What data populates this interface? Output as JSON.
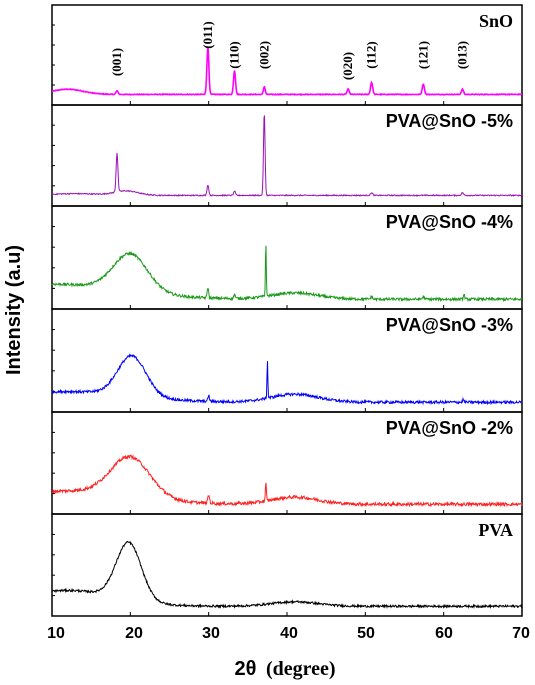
{
  "chart_data": {
    "type": "line",
    "xlabel_main": "2θ",
    "xlabel_unit": "(degree)",
    "ylabel": "Intensity (a.u)",
    "xlim": [
      10,
      70
    ],
    "xticks": [
      10,
      20,
      30,
      40,
      50,
      60,
      70
    ],
    "series": [
      {
        "name": "SnO",
        "color": "#ff00ff",
        "label_font": "serif",
        "peaks": [
          {
            "x": 18.3,
            "h": 0.04,
            "w": 0.3
          },
          {
            "x": 29.9,
            "h": 0.55,
            "w": 0.28
          },
          {
            "x": 33.3,
            "h": 0.28,
            "w": 0.28
          },
          {
            "x": 37.1,
            "h": 0.09,
            "w": 0.25
          },
          {
            "x": 47.8,
            "h": 0.06,
            "w": 0.3
          },
          {
            "x": 50.8,
            "h": 0.14,
            "w": 0.3
          },
          {
            "x": 57.4,
            "h": 0.12,
            "w": 0.3
          },
          {
            "x": 62.4,
            "h": 0.06,
            "w": 0.3
          }
        ],
        "humps": [
          {
            "x": 12.0,
            "h": 0.06,
            "w": 2.0
          }
        ],
        "baseline": 0.03,
        "noise": 0.004,
        "peak_labels": [
          {
            "x": 18.3,
            "text": "(001)"
          },
          {
            "x": 29.9,
            "text": "(011)"
          },
          {
            "x": 33.3,
            "text": "(110)"
          },
          {
            "x": 37.1,
            "text": "(002)"
          },
          {
            "x": 47.8,
            "text": "(020)"
          },
          {
            "x": 50.8,
            "text": "(112)"
          },
          {
            "x": 57.4,
            "text": "(121)"
          },
          {
            "x": 62.4,
            "text": "(013)"
          }
        ]
      },
      {
        "name": "PVA@SnO -5%",
        "color": "#9b10b8",
        "label_font": "sans",
        "peaks": [
          {
            "x": 18.3,
            "h": 0.45,
            "w": 0.25
          },
          {
            "x": 29.9,
            "h": 0.12,
            "w": 0.25
          },
          {
            "x": 33.3,
            "h": 0.05,
            "w": 0.25
          },
          {
            "x": 37.1,
            "h": 0.95,
            "w": 0.22
          },
          {
            "x": 50.8,
            "h": 0.03,
            "w": 0.3
          },
          {
            "x": 62.4,
            "h": 0.03,
            "w": 0.3
          }
        ],
        "humps": [
          {
            "x": 19.5,
            "h": 0.05,
            "w": 1.5
          },
          {
            "x": 13.0,
            "h": 0.02,
            "w": 3.0
          }
        ],
        "baseline": 0.03,
        "noise": 0.006
      },
      {
        "name": "PVA@SnO -4%",
        "color": "#1a9a1a",
        "label_font": "sans",
        "peaks": [
          {
            "x": 29.9,
            "h": 0.12,
            "w": 0.2
          },
          {
            "x": 33.3,
            "h": 0.05,
            "w": 0.2
          },
          {
            "x": 37.3,
            "h": 0.6,
            "w": 0.12
          },
          {
            "x": 50.8,
            "h": 0.03,
            "w": 0.25
          },
          {
            "x": 57.4,
            "h": 0.03,
            "w": 0.25
          },
          {
            "x": 62.6,
            "h": 0.05,
            "w": 0.2
          }
        ],
        "humps": [
          {
            "x": 20.0,
            "h": 0.42,
            "w": 2.2
          },
          {
            "x": 41.0,
            "h": 0.07,
            "w": 3.0
          },
          {
            "x": 10.0,
            "h": 0.17,
            "w": 9.0
          }
        ],
        "baseline": 0.02,
        "noise": 0.015
      },
      {
        "name": "PVA@SnO -3%",
        "color": "#0000ff",
        "label_font": "sans",
        "peaks": [
          {
            "x": 30.0,
            "h": 0.07,
            "w": 0.2
          },
          {
            "x": 37.5,
            "h": 0.42,
            "w": 0.12
          },
          {
            "x": 62.5,
            "h": 0.03,
            "w": 0.2
          }
        ],
        "humps": [
          {
            "x": 20.2,
            "h": 0.45,
            "w": 1.8
          },
          {
            "x": 41.0,
            "h": 0.09,
            "w": 3.0
          },
          {
            "x": 12.0,
            "h": 0.12,
            "w": 8.0
          }
        ],
        "baseline": 0.02,
        "noise": 0.015
      },
      {
        "name": "PVA@SnO -2%",
        "color": "#ff2020",
        "label_font": "sans",
        "peaks": [
          {
            "x": 30.0,
            "h": 0.09,
            "w": 0.25
          },
          {
            "x": 37.3,
            "h": 0.2,
            "w": 0.14
          }
        ],
        "humps": [
          {
            "x": 20.0,
            "h": 0.45,
            "w": 2.5
          },
          {
            "x": 41.0,
            "h": 0.08,
            "w": 3.0
          },
          {
            "x": 12.0,
            "h": 0.15,
            "w": 8.0
          }
        ],
        "baseline": 0.02,
        "noise": 0.018
      },
      {
        "name": "PVA",
        "color": "#000000",
        "label_font": "serif",
        "peaks": [],
        "humps": [
          {
            "x": 19.8,
            "h": 0.65,
            "w": 1.6
          },
          {
            "x": 41.0,
            "h": 0.05,
            "w": 3.0
          },
          {
            "x": 12.0,
            "h": 0.18,
            "w": 6.0
          }
        ],
        "baseline": 0.02,
        "noise": 0.012
      }
    ]
  }
}
